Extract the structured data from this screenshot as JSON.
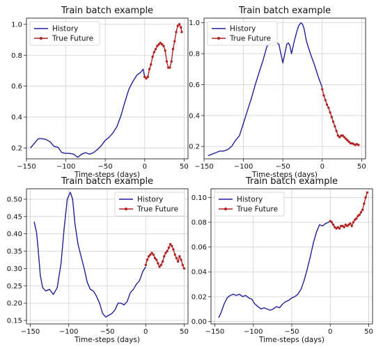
{
  "colors": {
    "history": "#1f1f9a",
    "future": "#b22222"
  },
  "chart_data": [
    {
      "type": "line",
      "title": "Train batch example",
      "xlabel": "Time-steps (days)",
      "ylabel": "",
      "xlim": [
        -150,
        55
      ],
      "ylim": [
        0.13,
        1.04
      ],
      "xticks": [
        -150,
        -100,
        -50,
        0,
        50
      ],
      "xtick_labels": [
        "−150",
        "−100",
        "−50",
        "0",
        "50"
      ],
      "yticks": [
        0.2,
        0.4,
        0.6,
        0.8,
        1.0
      ],
      "ytick_labels": [
        "0.2",
        "0.4",
        "0.6",
        "0.8",
        "1.0"
      ],
      "grid": true,
      "legend_position": "top-left",
      "series": [
        {
          "name": "History",
          "style": "line",
          "x": [
            -145,
            -140,
            -135,
            -130,
            -125,
            -120,
            -115,
            -110,
            -105,
            -100,
            -95,
            -90,
            -85,
            -80,
            -75,
            -70,
            -65,
            -60,
            -55,
            -50,
            -45,
            -40,
            -35,
            -30,
            -25,
            -20,
            -15,
            -10,
            -5,
            -2,
            0
          ],
          "y": [
            0.2,
            0.23,
            0.26,
            0.26,
            0.255,
            0.24,
            0.21,
            0.205,
            0.17,
            0.165,
            0.165,
            0.16,
            0.14,
            0.16,
            0.17,
            0.16,
            0.17,
            0.19,
            0.215,
            0.25,
            0.27,
            0.3,
            0.34,
            0.41,
            0.5,
            0.58,
            0.63,
            0.67,
            0.69,
            0.71,
            0.66
          ]
        },
        {
          "name": "True Future",
          "style": "line-marker",
          "x": [
            0,
            2,
            4,
            6,
            8,
            10,
            12,
            14,
            16,
            18,
            20,
            22,
            24,
            26,
            28,
            30,
            32,
            34,
            36,
            38,
            40,
            42,
            44,
            46,
            47
          ],
          "y": [
            0.66,
            0.65,
            0.66,
            0.71,
            0.74,
            0.79,
            0.82,
            0.84,
            0.86,
            0.87,
            0.88,
            0.87,
            0.86,
            0.83,
            0.76,
            0.72,
            0.72,
            0.76,
            0.84,
            0.89,
            0.95,
            0.99,
            1.0,
            0.98,
            0.95
          ]
        }
      ]
    },
    {
      "type": "line",
      "title": "Train batch example",
      "xlabel": "Time-steps (days)",
      "ylabel": "",
      "xlim": [
        -150,
        55
      ],
      "ylim": [
        0.12,
        1.03
      ],
      "xticks": [
        -150,
        -100,
        -50,
        0,
        50
      ],
      "xtick_labels": [
        "−150",
        "−100",
        "−50",
        "0",
        "50"
      ],
      "yticks": [
        0.2,
        0.4,
        0.6,
        0.8,
        1.0
      ],
      "ytick_labels": [
        "0.2",
        "0.4",
        "0.6",
        "0.8",
        "1.0"
      ],
      "grid": true,
      "legend_position": "top-left",
      "series": [
        {
          "name": "History",
          "style": "line",
          "x": [
            -145,
            -140,
            -135,
            -130,
            -125,
            -120,
            -115,
            -110,
            -105,
            -100,
            -95,
            -90,
            -85,
            -80,
            -75,
            -70,
            -65,
            -60,
            -55,
            -50,
            -45,
            -43,
            -41,
            -39,
            -36,
            -33,
            -30,
            -27,
            -25,
            -23,
            -20,
            -15,
            -10,
            -5,
            0
          ],
          "y": [
            0.14,
            0.15,
            0.16,
            0.17,
            0.17,
            0.18,
            0.2,
            0.24,
            0.27,
            0.35,
            0.43,
            0.51,
            0.6,
            0.68,
            0.76,
            0.85,
            0.87,
            0.88,
            0.86,
            0.74,
            0.86,
            0.87,
            0.85,
            0.8,
            0.87,
            0.93,
            0.98,
            1.0,
            0.99,
            0.96,
            0.88,
            0.8,
            0.73,
            0.65,
            0.58
          ]
        },
        {
          "name": "True Future",
          "style": "line-marker",
          "x": [
            0,
            2,
            4,
            6,
            8,
            10,
            12,
            14,
            16,
            18,
            20,
            22,
            24,
            26,
            28,
            30,
            32,
            34,
            36,
            38,
            40,
            42,
            44,
            46
          ],
          "y": [
            0.57,
            0.53,
            0.5,
            0.47,
            0.45,
            0.42,
            0.39,
            0.36,
            0.33,
            0.3,
            0.27,
            0.26,
            0.27,
            0.27,
            0.26,
            0.25,
            0.24,
            0.23,
            0.22,
            0.22,
            0.215,
            0.21,
            0.215,
            0.21
          ]
        }
      ]
    },
    {
      "type": "line",
      "title": "Train batch example",
      "xlabel": "Time-steps (days)",
      "ylabel": "",
      "xlim": [
        -155,
        55
      ],
      "ylim": [
        0.14,
        0.53
      ],
      "xticks": [
        -150,
        -100,
        -50,
        0,
        50
      ],
      "xtick_labels": [
        "−150",
        "−100",
        "−50",
        "0",
        "50"
      ],
      "yticks": [
        0.15,
        0.2,
        0.25,
        0.3,
        0.35,
        0.4,
        0.45,
        0.5
      ],
      "ytick_labels": [
        "0.15",
        "0.20",
        "0.25",
        "0.30",
        "0.35",
        "0.40",
        "0.45",
        "0.50"
      ],
      "grid": true,
      "legend_position": "top-right",
      "series": [
        {
          "name": "History",
          "style": "line",
          "x": [
            -145,
            -142,
            -140,
            -137,
            -134,
            -130,
            -125,
            -120,
            -115,
            -110,
            -106,
            -102,
            -98,
            -95,
            -92,
            -88,
            -84,
            -80,
            -76,
            -72,
            -68,
            -64,
            -60,
            -56,
            -52,
            -48,
            -44,
            -40,
            -36,
            -32,
            -28,
            -24,
            -20,
            -16,
            -12,
            -8,
            -4,
            0
          ],
          "y": [
            0.435,
            0.405,
            0.36,
            0.28,
            0.245,
            0.235,
            0.24,
            0.225,
            0.245,
            0.315,
            0.415,
            0.5,
            0.52,
            0.5,
            0.43,
            0.37,
            0.335,
            0.3,
            0.26,
            0.24,
            0.235,
            0.22,
            0.2,
            0.17,
            0.16,
            0.165,
            0.17,
            0.18,
            0.2,
            0.2,
            0.195,
            0.205,
            0.23,
            0.24,
            0.255,
            0.265,
            0.29,
            0.305
          ]
        },
        {
          "name": "True Future",
          "style": "line-marker",
          "x": [
            0,
            2,
            4,
            6,
            8,
            10,
            12,
            14,
            16,
            18,
            20,
            22,
            24,
            26,
            28,
            30,
            32,
            34,
            36,
            38,
            40,
            42,
            44,
            46,
            48,
            50
          ],
          "y": [
            0.31,
            0.325,
            0.335,
            0.34,
            0.345,
            0.34,
            0.33,
            0.325,
            0.315,
            0.305,
            0.31,
            0.32,
            0.335,
            0.345,
            0.35,
            0.36,
            0.37,
            0.365,
            0.355,
            0.34,
            0.33,
            0.32,
            0.335,
            0.325,
            0.31,
            0.3
          ]
        }
      ]
    },
    {
      "type": "line",
      "title": "Train batch example",
      "xlabel": "Time-steps (days)",
      "ylabel": "",
      "xlim": [
        -155,
        55
      ],
      "ylim": [
        -0.002,
        0.107
      ],
      "xticks": [
        -150,
        -100,
        -50,
        0,
        50
      ],
      "xtick_labels": [
        "−150",
        "−100",
        "−50",
        "0",
        "50"
      ],
      "yticks": [
        0.0,
        0.02,
        0.04,
        0.06,
        0.08,
        0.1
      ],
      "ytick_labels": [
        "0.00",
        "0.02",
        "0.04",
        "0.06",
        "0.08",
        "0.10"
      ],
      "grid": true,
      "legend_position": "top-left",
      "series": [
        {
          "name": "History",
          "style": "line",
          "x": [
            -145,
            -142,
            -138,
            -134,
            -130,
            -126,
            -122,
            -118,
            -114,
            -110,
            -106,
            -102,
            -98,
            -94,
            -90,
            -86,
            -82,
            -78,
            -74,
            -70,
            -66,
            -62,
            -58,
            -54,
            -50,
            -46,
            -42,
            -38,
            -34,
            -30,
            -26,
            -22,
            -18,
            -14,
            -10,
            -6,
            -2,
            0
          ],
          "y": [
            0.003,
            0.007,
            0.014,
            0.019,
            0.021,
            0.022,
            0.021,
            0.022,
            0.02,
            0.021,
            0.019,
            0.018,
            0.014,
            0.012,
            0.01,
            0.011,
            0.01,
            0.009,
            0.01,
            0.012,
            0.011,
            0.014,
            0.016,
            0.017,
            0.019,
            0.02,
            0.022,
            0.026,
            0.033,
            0.042,
            0.052,
            0.063,
            0.072,
            0.078,
            0.077,
            0.079,
            0.08,
            0.081
          ]
        },
        {
          "name": "True Future",
          "style": "line-marker",
          "x": [
            0,
            2,
            4,
            6,
            8,
            10,
            12,
            14,
            16,
            18,
            20,
            22,
            24,
            26,
            28,
            30,
            32,
            34,
            36,
            38,
            40,
            42,
            44,
            46,
            48
          ],
          "y": [
            0.081,
            0.08,
            0.078,
            0.076,
            0.075,
            0.076,
            0.075,
            0.077,
            0.077,
            0.076,
            0.078,
            0.077,
            0.078,
            0.079,
            0.077,
            0.08,
            0.082,
            0.083,
            0.085,
            0.086,
            0.088,
            0.09,
            0.095,
            0.1,
            0.104
          ]
        }
      ]
    }
  ]
}
